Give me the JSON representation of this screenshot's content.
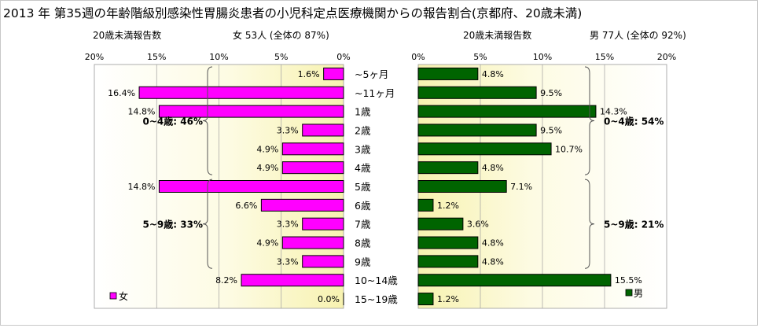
{
  "title": "2013 年 第35週の年齢階級別感染性胃腸炎患者の小児科定点医療機関からの報告割合(京都府、20歳未満)",
  "female_header": {
    "label": "20歳未満報告数",
    "summary": "女 53人 (全体の 87%)"
  },
  "male_header": {
    "label": "20歳未満報告数",
    "summary": "男 77人 (全体の 92%)"
  },
  "colors": {
    "female": "#ff00ff",
    "male": "#006400"
  },
  "chart_data": {
    "type": "bar",
    "orientation": "horizontal",
    "categories": [
      "~5ヶ月",
      "~11ヶ月",
      "1歳",
      "2歳",
      "3歳",
      "4歳",
      "5歳",
      "6歳",
      "7歳",
      "8歳",
      "9歳",
      "10~14歳",
      "15~19歳"
    ],
    "xlim": [
      0,
      20
    ],
    "ticks": [
      "0%",
      "5%",
      "10%",
      "15%",
      "20%"
    ],
    "series": [
      {
        "name": "女",
        "side": "left",
        "values": [
          1.6,
          16.4,
          14.8,
          3.3,
          4.9,
          4.9,
          14.8,
          6.6,
          3.3,
          4.9,
          3.3,
          8.2,
          0.0
        ],
        "labels": [
          "1.6%",
          "16.4%",
          "14.8%",
          "3.3%",
          "4.9%",
          "4.9%",
          "14.8%",
          "6.6%",
          "3.3%",
          "4.9%",
          "3.3%",
          "8.2%",
          "0.0%"
        ],
        "groups": [
          {
            "label": "0~4歳: 46%",
            "from": 0,
            "to": 5
          },
          {
            "label": "5~9歳: 33%",
            "from": 6,
            "to": 10
          }
        ]
      },
      {
        "name": "男",
        "side": "right",
        "values": [
          4.8,
          9.5,
          14.3,
          9.5,
          10.7,
          4.8,
          7.1,
          1.2,
          3.6,
          4.8,
          4.8,
          15.5,
          1.2
        ],
        "labels": [
          "4.8%",
          "9.5%",
          "14.3%",
          "9.5%",
          "10.7%",
          "4.8%",
          "7.1%",
          "1.2%",
          "3.6%",
          "4.8%",
          "4.8%",
          "15.5%",
          "1.2%"
        ],
        "groups": [
          {
            "label": "0~4歳: 54%",
            "from": 0,
            "to": 5
          },
          {
            "label": "5~9歳: 21%",
            "from": 6,
            "to": 10
          }
        ]
      }
    ]
  }
}
